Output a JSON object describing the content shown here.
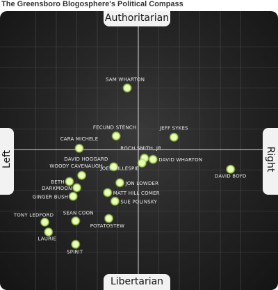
{
  "title": "The Greensboro Blogosphere's Political Compass",
  "axes": {
    "top": "Authoritarian",
    "bottom": "Libertarian",
    "left": "Left",
    "right": "Right"
  },
  "chart_data": {
    "type": "scatter",
    "xlim": [
      -10,
      10
    ],
    "ylim": [
      -10,
      10
    ],
    "points": [
      {
        "label": "SAM WHARTON",
        "x": -0.9,
        "y": 5.0
      },
      {
        "label": "FECUND STENCH",
        "x": -1.8,
        "y": 1.1
      },
      {
        "label": "JEFF SYKES",
        "x": 2.9,
        "y": 1.0
      },
      {
        "label": "CARA MICHELE",
        "x": -4.8,
        "y": 0.1
      },
      {
        "label": "ROCH SMITH, JR.",
        "x": 0.5,
        "y": -0.7
      },
      {
        "label": "DAVID WHARTON",
        "x": 1.2,
        "y": -0.8
      },
      {
        "label": "DAVID HOGGARD",
        "x": -2.0,
        "y": -1.4
      },
      {
        "label": "JOEL GILLESPIE",
        "x": 0.3,
        "y": -1.1
      },
      {
        "label": "DAVID BOYD",
        "x": 7.5,
        "y": -1.6
      },
      {
        "label": "WOODY CAVENAUGH",
        "x": -4.6,
        "y": -2.1
      },
      {
        "label": "BETH",
        "x": -5.6,
        "y": -2.6
      },
      {
        "label": "JON LOWDER",
        "x": -1.5,
        "y": -2.7
      },
      {
        "label": "DARKMOON",
        "x": -5.0,
        "y": -3.1
      },
      {
        "label": "MATT HILL COMER",
        "x": -2.5,
        "y": -3.5
      },
      {
        "label": "GINGER BUSH",
        "x": -5.3,
        "y": -3.8
      },
      {
        "label": "SUE POLINSKY",
        "x": -1.9,
        "y": -4.2
      },
      {
        "label": "TONY LEDFORD",
        "x": -7.6,
        "y": -5.9
      },
      {
        "label": "SEAN COON",
        "x": -5.1,
        "y": -5.8
      },
      {
        "label": "POTATOSTEW",
        "x": -2.4,
        "y": -5.6
      },
      {
        "label": "LAURIE",
        "x": -7.3,
        "y": -6.7
      },
      {
        "label": "SPIRIT",
        "x": -5.1,
        "y": -7.7
      }
    ]
  }
}
